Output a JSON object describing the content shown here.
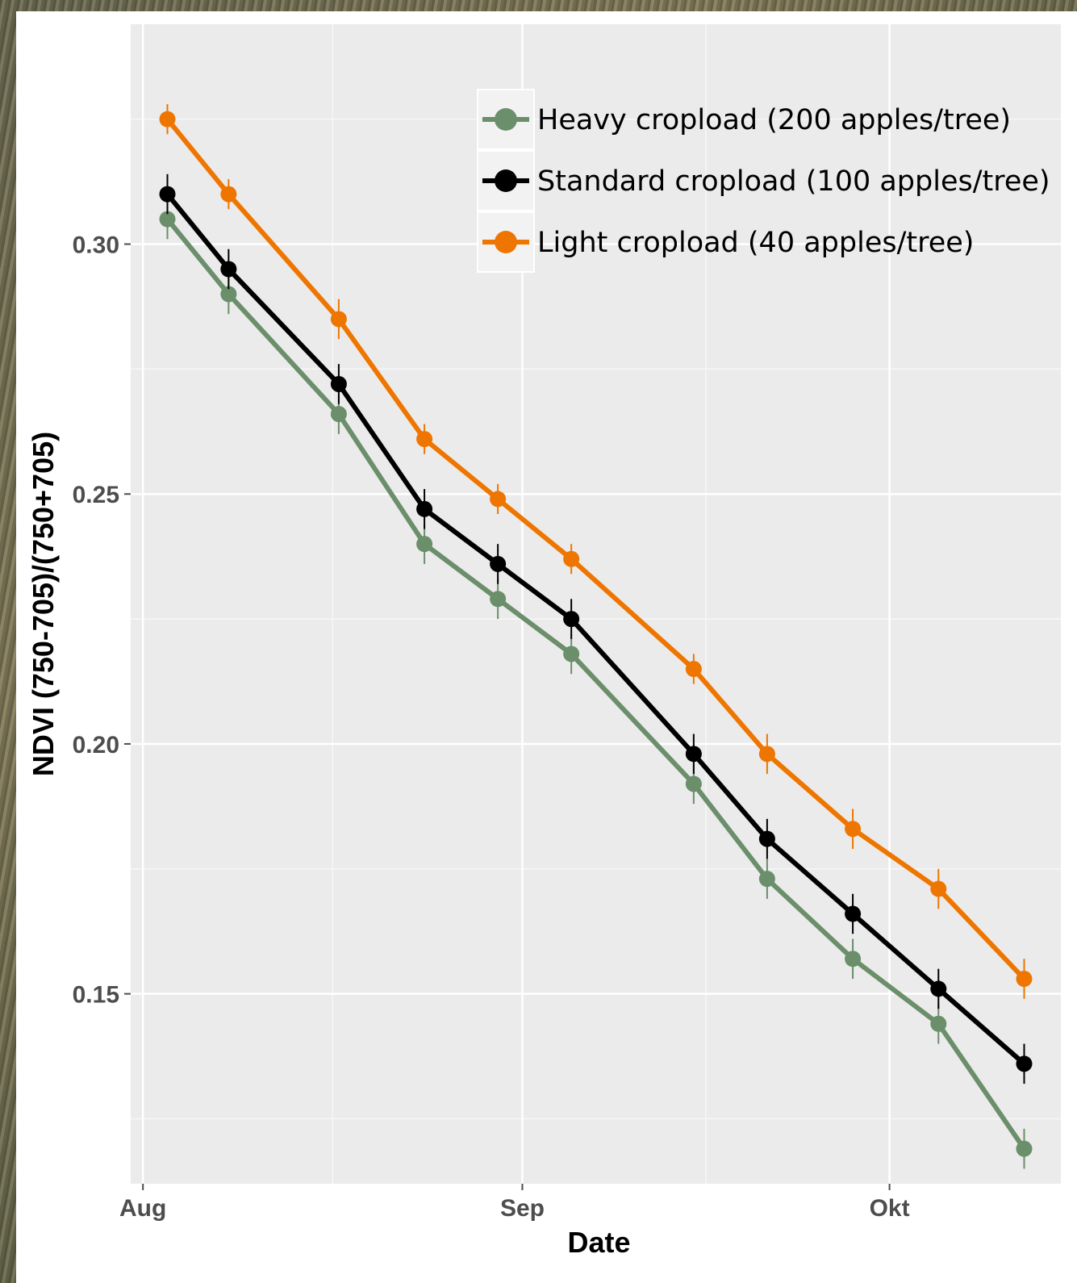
{
  "chart_data": {
    "type": "line",
    "xlabel": "Date",
    "ylabel": "NDVI (750-705)/(750+705)",
    "x_ticks": [
      {
        "label": "Aug",
        "date": "2014-08-01"
      },
      {
        "label": "Sep",
        "date": "2014-09-01"
      },
      {
        "label": "Okt",
        "date": "2014-10-01"
      }
    ],
    "y_ticks": [
      "0.15",
      "0.20",
      "0.25",
      "0.30"
    ],
    "y_tick_values": [
      0.15,
      0.2,
      0.25,
      0.3
    ],
    "xlim": [
      "2014-07-31",
      "2014-10-15"
    ],
    "ylim": [
      0.112,
      0.344
    ],
    "grid": true,
    "legend_position": "top-right",
    "x": [
      "2014-08-03",
      "2014-08-08",
      "2014-08-17",
      "2014-08-24",
      "2014-08-30",
      "2014-09-05",
      "2014-09-15",
      "2014-09-21",
      "2014-09-28",
      "2014-10-05",
      "2014-10-12"
    ],
    "series": [
      {
        "name": "Heavy cropload (200 apples/tree)",
        "color": "#6b8e6b",
        "values": [
          0.305,
          0.29,
          0.266,
          0.24,
          0.229,
          0.218,
          0.192,
          0.173,
          0.157,
          0.144,
          0.119
        ],
        "errors": [
          0.004,
          0.004,
          0.004,
          0.004,
          0.004,
          0.004,
          0.004,
          0.004,
          0.004,
          0.004,
          0.004
        ]
      },
      {
        "name": "Standard cropload (100 apples/tree)",
        "color": "#000000",
        "values": [
          0.31,
          0.295,
          0.272,
          0.247,
          0.236,
          0.225,
          0.198,
          0.181,
          0.166,
          0.151,
          0.136
        ],
        "errors": [
          0.004,
          0.004,
          0.004,
          0.004,
          0.004,
          0.004,
          0.004,
          0.004,
          0.004,
          0.004,
          0.004
        ]
      },
      {
        "name": "Light cropload (40 apples/tree)",
        "color": "#ee7600",
        "values": [
          0.325,
          0.31,
          0.285,
          0.261,
          0.249,
          0.237,
          0.215,
          0.198,
          0.183,
          0.171,
          0.153
        ],
        "errors": [
          0.003,
          0.003,
          0.004,
          0.003,
          0.003,
          0.003,
          0.003,
          0.004,
          0.004,
          0.004,
          0.004
        ]
      }
    ]
  }
}
